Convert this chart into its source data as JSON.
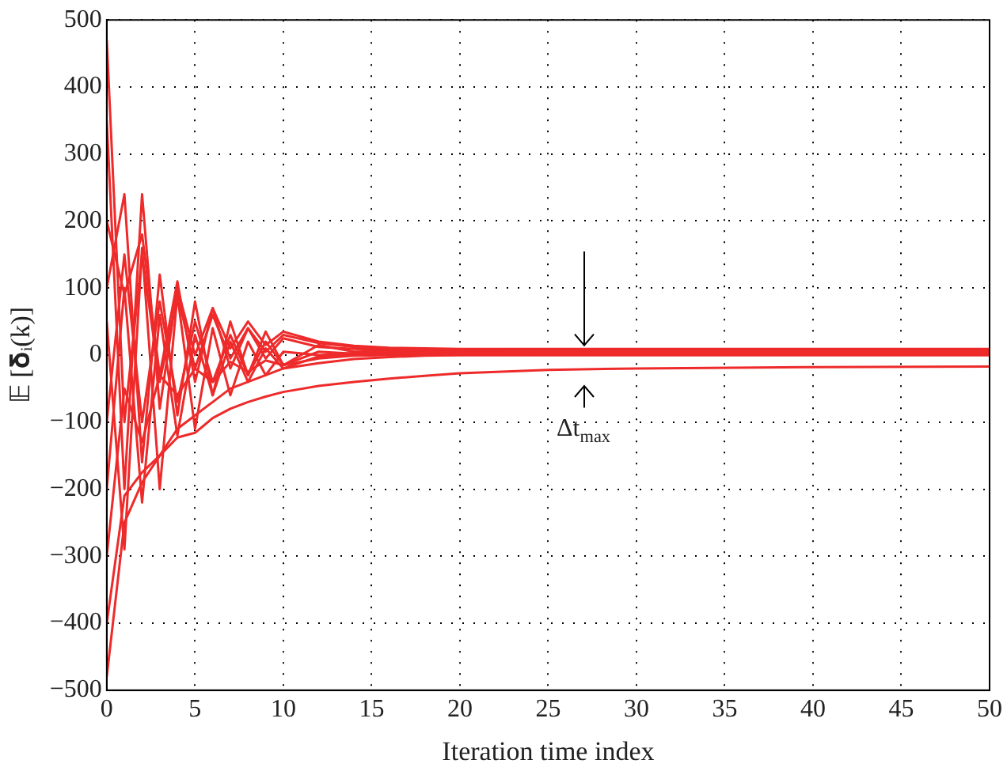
{
  "chart_data": {
    "type": "line",
    "xlabel": "Iteration time index",
    "ylabel": "𝔼 [𝛅ᵢ(k)]",
    "x": [
      0,
      1,
      2,
      3,
      4,
      5,
      6,
      7,
      8,
      9,
      10,
      12,
      14,
      16,
      18,
      20,
      25,
      30,
      40,
      50
    ],
    "series": [
      {
        "color": "#ee2a2a",
        "values": [
          470,
          -100,
          150,
          -40,
          90,
          -20,
          60,
          -5,
          40,
          5,
          30,
          18,
          12,
          10,
          9,
          8,
          8,
          8,
          8,
          8
        ]
      },
      {
        "color": "#ee2a2a",
        "values": [
          350,
          -200,
          240,
          -80,
          100,
          0,
          70,
          10,
          50,
          15,
          35,
          20,
          14,
          11,
          10,
          9,
          9,
          9,
          9,
          9
        ]
      },
      {
        "color": "#ee2a2a",
        "values": [
          200,
          90,
          180,
          -30,
          110,
          -40,
          70,
          -20,
          40,
          -5,
          25,
          12,
          9,
          8,
          7,
          7,
          6,
          6,
          6,
          6
        ]
      },
      {
        "color": "#ee2a2a",
        "values": [
          100,
          240,
          -160,
          120,
          -90,
          80,
          -60,
          50,
          -30,
          35,
          -15,
          15,
          5,
          6,
          5,
          5,
          5,
          5,
          5,
          5
        ]
      },
      {
        "color": "#ee2a2a",
        "values": [
          50,
          -290,
          160,
          -200,
          90,
          -110,
          40,
          -60,
          20,
          -30,
          5,
          0,
          3,
          3,
          3,
          3,
          3,
          3,
          3,
          3
        ]
      },
      {
        "color": "#ee2a2a",
        "values": [
          -100,
          150,
          -100,
          80,
          -70,
          50,
          -40,
          30,
          -30,
          20,
          -15,
          5,
          2,
          2,
          2,
          2,
          2,
          2,
          2,
          2
        ]
      },
      {
        "color": "#ee2a2a",
        "values": [
          -200,
          100,
          -220,
          60,
          -120,
          30,
          -60,
          20,
          -40,
          10,
          -20,
          -2,
          0,
          1,
          1,
          1,
          1,
          1,
          1,
          1
        ]
      },
      {
        "color": "#ee2a2a",
        "values": [
          -300,
          -50,
          -130,
          -30,
          -60,
          -20,
          -40,
          -10,
          -25,
          -8,
          -15,
          -5,
          -1,
          0,
          0,
          0,
          0,
          0,
          0,
          0
        ]
      },
      {
        "color": "#ee2a2a",
        "values": [
          -400,
          -210,
          -175,
          -150,
          -110,
          -90,
          -70,
          -50,
          -40,
          -30,
          -20,
          -12,
          -6,
          -3,
          -1,
          0,
          0,
          0,
          0,
          0
        ]
      },
      {
        "color": "#ee2a2a",
        "values": [
          -480,
          -250,
          -190,
          -150,
          -123,
          -116,
          -94,
          -80,
          -70,
          -62,
          -55,
          -46,
          -40,
          -35,
          -31,
          -27,
          -22,
          -20,
          -18,
          -17
        ]
      }
    ],
    "xlim": [
      0,
      50
    ],
    "xticks": [
      0,
      5,
      10,
      15,
      20,
      25,
      30,
      35,
      40,
      45,
      50
    ],
    "ylim": [
      -500,
      500
    ],
    "yticks": [
      -500,
      -400,
      -300,
      -200,
      -100,
      0,
      100,
      200,
      300,
      400,
      500
    ],
    "annotations": [
      "Δt$_{max}$"
    ],
    "grid": true,
    "legend": false,
    "marker": "none",
    "line_style": "solid"
  }
}
